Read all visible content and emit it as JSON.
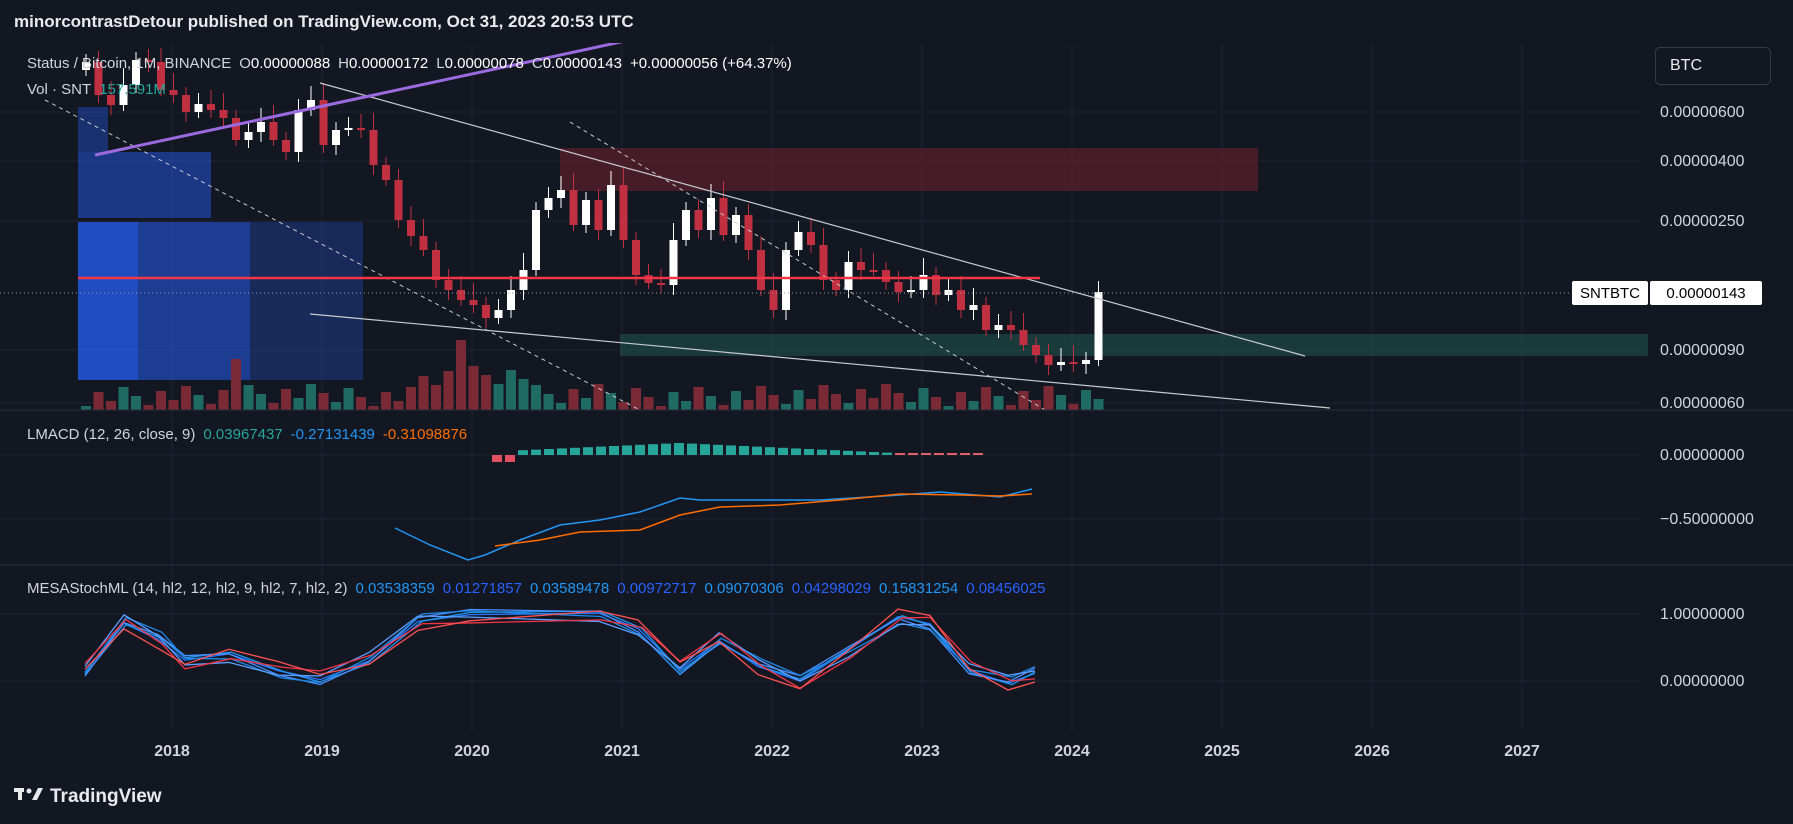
{
  "header": {
    "published": "minorcontrastDetour published on TradingView.com, Oct 31, 2023 20:53 UTC"
  },
  "colors": {
    "bg": "#131722",
    "up": "#ffffff",
    "down": "#c03040",
    "resistance": "#f23645",
    "trendline": "#b2b5be",
    "ma": "#9b6ae0",
    "macd": "#2196f3",
    "signal": "#ff6d00",
    "stoch": "#2979ff"
  },
  "main_legend": {
    "symbol": "Status / Bitcoin, 1M, BINANCE",
    "o_label": "O",
    "o": "0.00000088",
    "h_label": "H",
    "h": "0.00000172",
    "l_label": "L",
    "l": "0.00000078",
    "c_label": "C",
    "c": "0.00000143",
    "change": "+0.00000056 (+64.37%)",
    "vol_label": "Vol · SNT",
    "vol": "157.591M"
  },
  "currency_button": "BTC",
  "price_tag": {
    "symbol": "SNTBTC",
    "value": "0.00000143"
  },
  "price_axis": [
    "0.00000600",
    "0.00000400",
    "0.00000250",
    "0.00000090",
    "0.00000060"
  ],
  "lmacd": {
    "name": "LMACD (12, 26, close, 9)",
    "v1": "0.03967437",
    "v2": "-0.27131439",
    "v3": "-0.31098876",
    "axis": [
      "0.00000000",
      "−0.50000000"
    ]
  },
  "mesa": {
    "name": "MESAStochML (14, hl2, 12, hl2, 9, hl2, 7, hl2, 2)",
    "values": [
      "0.03538359",
      "0.01271857",
      "0.03589478",
      "0.00972717",
      "0.09070306",
      "0.04298029",
      "0.15831254",
      "0.08456025"
    ],
    "axis": [
      "1.00000000",
      "0.00000000"
    ]
  },
  "time_axis": [
    "2018",
    "2019",
    "2020",
    "2021",
    "2022",
    "2023",
    "2024",
    "2025",
    "2026",
    "2027"
  ],
  "footer": {
    "brand": "TradingView"
  },
  "chart_data": {
    "type": "candlestick",
    "title": "Status / Bitcoin, 1M, BINANCE",
    "x_range": [
      "2017-06",
      "2027-12"
    ],
    "y_scale": "log",
    "y_ticks": [
      6e-06,
      4e-06,
      2.5e-06,
      9e-07,
      6e-07
    ],
    "last_candle": {
      "date": "2023-10",
      "open": 8.8e-07,
      "high": 1.72e-06,
      "low": 7.8e-07,
      "close": 1.43e-06
    },
    "last_price": 1.43e-06,
    "volume_last": "157.591M",
    "indicators": [
      {
        "name": "LMACD (12, 26, close, 9)",
        "values": [
          0.03967437,
          -0.27131439,
          -0.31098876
        ]
      },
      {
        "name": "MESAStochML (14, hl2, 12, hl2, 9, hl2, 7, hl2, 2)",
        "values": [
          0.03538359,
          0.01271857,
          0.03589478,
          0.00972717,
          0.09070306,
          0.04298029,
          0.15831254,
          0.08456025
        ]
      }
    ]
  }
}
